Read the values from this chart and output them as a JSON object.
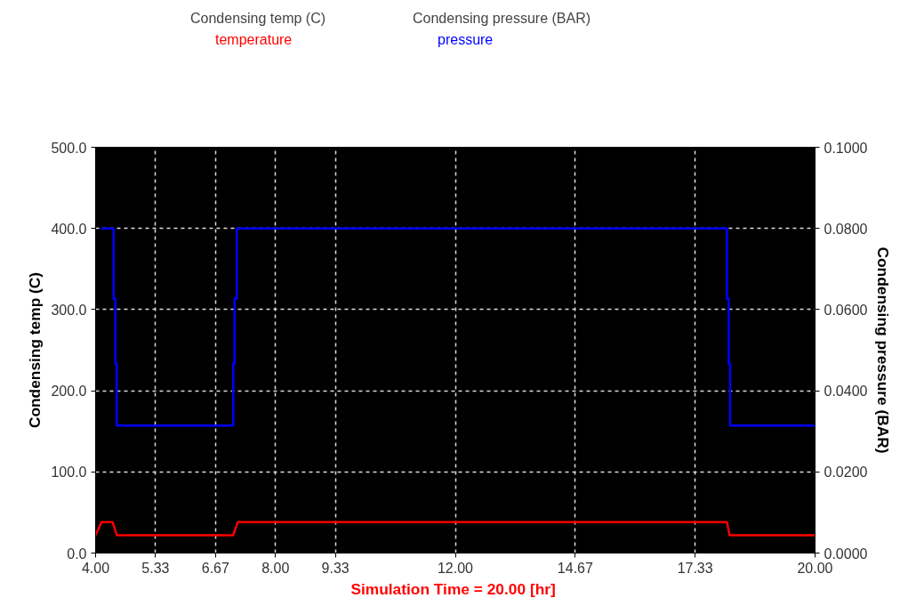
{
  "chart_data": {
    "type": "line",
    "xlabel": "Simulation Time =  20.00 [hr]",
    "ylabel": "Condensing temp (C)",
    "y2label": "Condensing pressure (BAR)",
    "annotations": [
      "Condensing temp (C)",
      "Condensing pressure (BAR)"
    ],
    "series": [
      {
        "name": "temperature",
        "color": "#ff0000",
        "x": [
          4.0,
          4.13,
          4.38,
          4.47,
          7.06,
          7.16,
          18.04,
          18.1,
          20.0
        ],
        "values": [
          22,
          38,
          38,
          22,
          22,
          38,
          38,
          22,
          22
        ]
      },
      {
        "name": "pressure",
        "color": "#0000ff",
        "axis": "y2",
        "x": [
          4.12,
          4.4,
          4.4,
          4.44,
          4.44,
          4.47,
          4.47,
          7.06,
          7.06,
          7.09,
          7.09,
          7.14,
          7.14,
          18.04,
          18.04,
          18.08,
          18.08,
          18.11,
          18.11,
          20.0
        ],
        "values": [
          0.08,
          0.08,
          0.0627,
          0.0627,
          0.0467,
          0.0467,
          0.0314,
          0.0314,
          0.0467,
          0.0467,
          0.0627,
          0.0627,
          0.08,
          0.08,
          0.0627,
          0.0627,
          0.0467,
          0.0467,
          0.0314,
          0.0314
        ]
      }
    ],
    "xlim": [
      4.0,
      20.0
    ],
    "xticks": [
      {
        "value": 4.0,
        "label": "4.00"
      },
      {
        "value": 5.333,
        "label": "5.33"
      },
      {
        "value": 6.667,
        "label": "6.67"
      },
      {
        "value": 8.0,
        "label": "8.00"
      },
      {
        "value": 9.333,
        "label": "9.33"
      },
      {
        "value": 12.0,
        "label": "12.00"
      },
      {
        "value": 14.667,
        "label": "14.67"
      },
      {
        "value": 17.333,
        "label": "17.33"
      },
      {
        "value": 20.0,
        "label": "20.00"
      }
    ],
    "ylim": [
      0,
      500
    ],
    "yticks": [
      {
        "value": 0,
        "label": "0.0"
      },
      {
        "value": 100,
        "label": "100.0"
      },
      {
        "value": 200,
        "label": "200.0"
      },
      {
        "value": 300,
        "label": "300.0"
      },
      {
        "value": 400,
        "label": "400.0"
      },
      {
        "value": 500,
        "label": "500.0"
      }
    ],
    "y2lim": [
      0,
      0.1
    ],
    "y2ticks": [
      {
        "value": 0,
        "label": "0.0000"
      },
      {
        "value": 0.02,
        "label": "0.0200"
      },
      {
        "value": 0.04,
        "label": "0.0400"
      },
      {
        "value": 0.06,
        "label": "0.0600"
      },
      {
        "value": 0.08,
        "label": "0.0800"
      },
      {
        "value": 0.1,
        "label": "0.1000"
      }
    ],
    "grid": true,
    "legend": "top left",
    "line_style": "solid"
  }
}
